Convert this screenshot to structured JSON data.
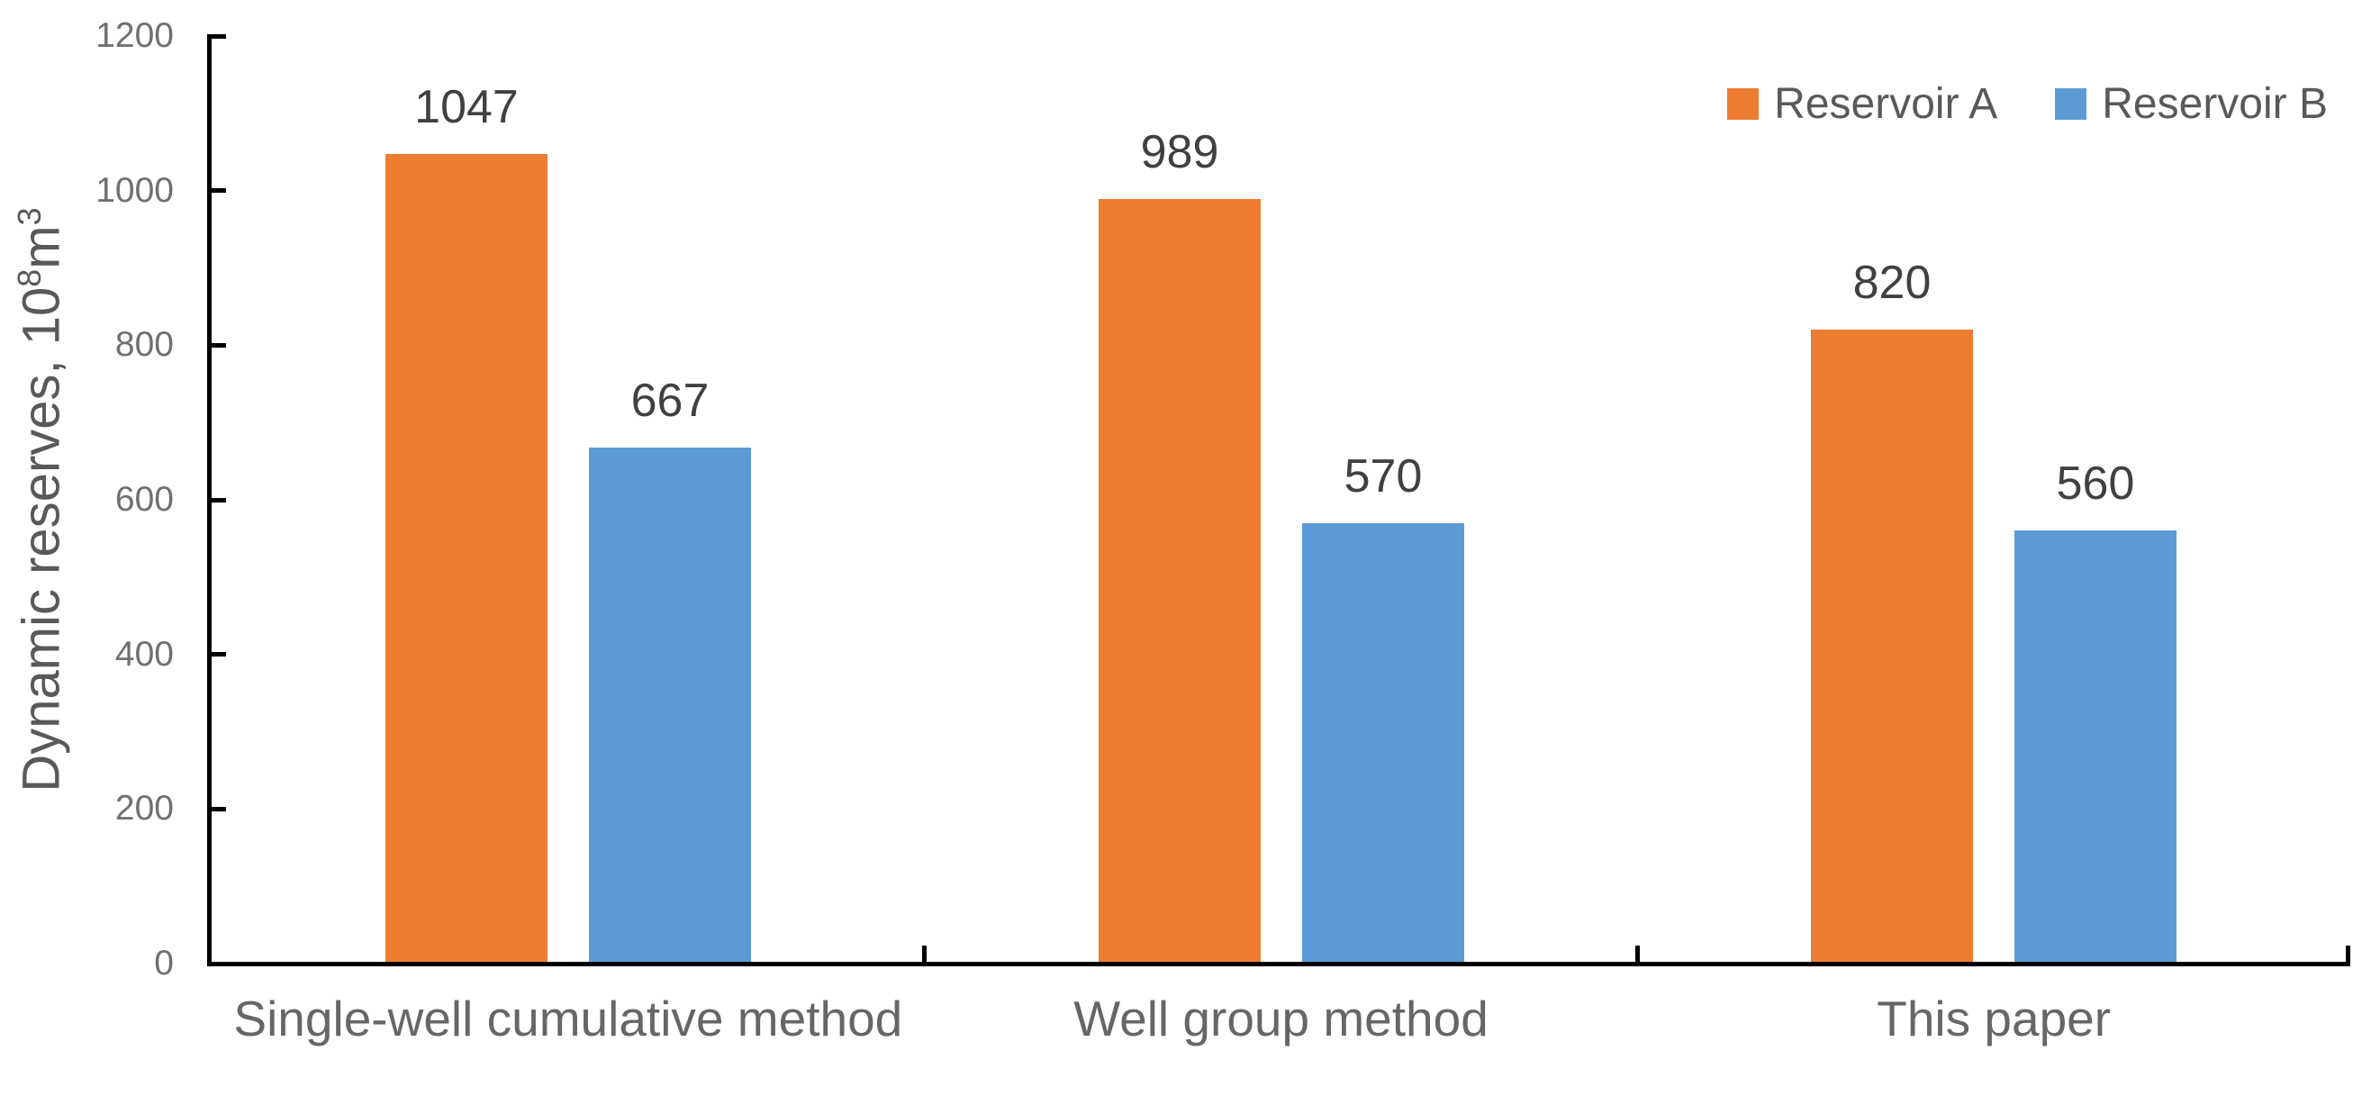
{
  "chart_data": {
    "type": "bar",
    "title": "",
    "categories": [
      "Single-well cumulative method",
      "Well group method",
      "This paper"
    ],
    "series": [
      {
        "name": "Reservoir A",
        "color": "#ED7D31",
        "values": [
          1047,
          989,
          820
        ]
      },
      {
        "name": "Reservoir B",
        "color": "#5B9BD5",
        "values": [
          667,
          570,
          560
        ]
      }
    ],
    "data_labels": [
      [
        "1047",
        "989",
        "820"
      ],
      [
        "667",
        "570",
        "560"
      ]
    ],
    "xlabel": "",
    "ylabel": "Dynamic reserves, 10⁸m³",
    "ylim": [
      0,
      1200
    ],
    "yticks": [
      "0",
      "200",
      "400",
      "600",
      "800",
      "1000",
      "1200"
    ],
    "grid": false,
    "legend_position": "top-right",
    "axis_color": "#000000",
    "tick_label_color": "#707070",
    "data_label_color": "#404040",
    "background": "#FFFFFF"
  }
}
